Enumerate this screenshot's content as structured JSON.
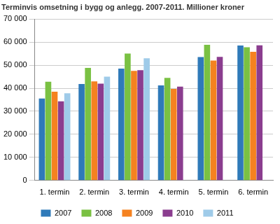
{
  "chart_data": {
    "type": "bar",
    "title": "Terminvis omsetning i bygg og anlegg. 2007-2011. Millioner kroner",
    "categories": [
      "1. termin",
      "2. termin",
      "3. termin",
      "4. termin",
      "5. termin",
      "6. termin"
    ],
    "series": [
      {
        "name": "2007",
        "color": "#2f7ab9",
        "values": [
          35500,
          41800,
          48500,
          41200,
          53500,
          58500
        ]
      },
      {
        "name": "2008",
        "color": "#7ac143",
        "values": [
          42800,
          48800,
          55000,
          44500,
          58800,
          57800
        ]
      },
      {
        "name": "2009",
        "color": "#f58220",
        "values": [
          38500,
          43000,
          47500,
          39700,
          52000,
          55800
        ]
      },
      {
        "name": "2010",
        "color": "#8b3d8f",
        "values": [
          34300,
          42000,
          47800,
          40700,
          53600,
          58600
        ]
      },
      {
        "name": "2011",
        "color": "#9fcbe9",
        "values": [
          37800,
          45000,
          53000,
          null,
          null,
          null
        ]
      }
    ],
    "ylim": [
      0,
      70000
    ],
    "yticks": [
      0,
      {
        "value": 10000,
        "label": "10 000"
      },
      {
        "value": 20000,
        "label": "20 000"
      },
      {
        "value": 30000,
        "label": "30 000"
      },
      {
        "value": 40000,
        "label": "40 000"
      },
      {
        "value": 50000,
        "label": "50 000"
      },
      {
        "value": 60000,
        "label": "60 000"
      },
      {
        "value": 70000,
        "label": "70 000"
      }
    ],
    "grid": true,
    "legend": "bottom"
  }
}
